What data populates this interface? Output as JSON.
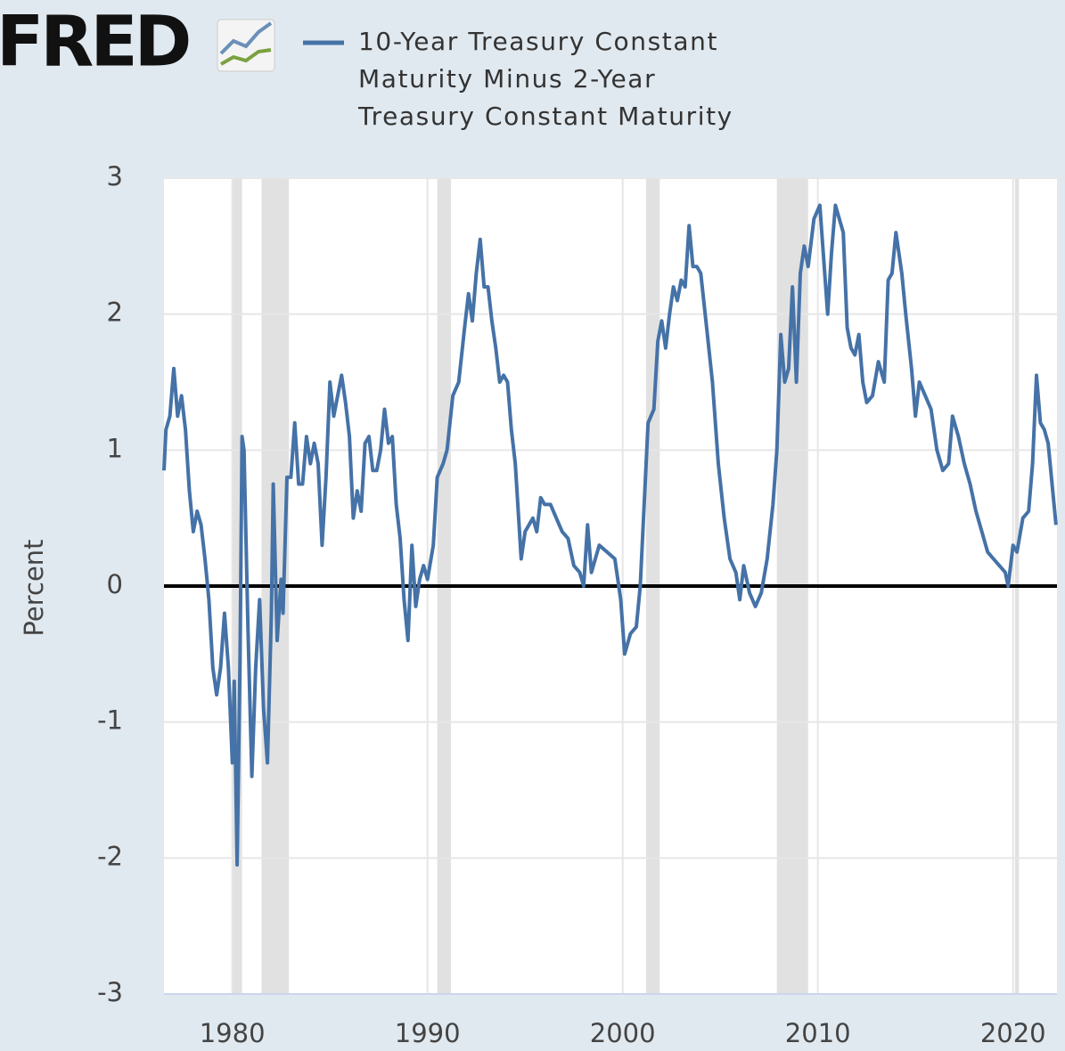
{
  "chart_data": {
    "type": "line",
    "logo": "FRED",
    "y_label": "Percent",
    "series": [
      {
        "name": "10-Year Treasury Constant Maturity Minus 2-Year Treasury Constant Maturity",
        "color": "#4572a7",
        "x": [
          1976.5,
          1976.6,
          1976.8,
          1977.0,
          1977.2,
          1977.4,
          1977.6,
          1977.8,
          1978.0,
          1978.2,
          1978.4,
          1978.6,
          1978.8,
          1979.0,
          1979.2,
          1979.4,
          1979.6,
          1979.8,
          1980.0,
          1980.1,
          1980.25,
          1980.4,
          1980.5,
          1980.6,
          1980.8,
          1981.0,
          1981.2,
          1981.4,
          1981.6,
          1981.8,
          1982.0,
          1982.1,
          1982.3,
          1982.5,
          1982.6,
          1982.8,
          1983.0,
          1983.2,
          1983.4,
          1983.6,
          1983.8,
          1984.0,
          1984.2,
          1984.4,
          1984.6,
          1984.8,
          1985.0,
          1985.2,
          1985.4,
          1985.6,
          1985.8,
          1986.0,
          1986.2,
          1986.4,
          1986.6,
          1986.8,
          1987.0,
          1987.2,
          1987.4,
          1987.6,
          1987.8,
          1988.0,
          1988.2,
          1988.4,
          1988.6,
          1988.8,
          1989.0,
          1989.2,
          1989.4,
          1989.6,
          1989.8,
          1990.0,
          1990.3,
          1990.5,
          1990.8,
          1991.0,
          1991.3,
          1991.6,
          1991.9,
          1992.1,
          1992.3,
          1992.5,
          1992.7,
          1992.9,
          1993.1,
          1993.3,
          1993.5,
          1993.7,
          1993.9,
          1994.1,
          1994.3,
          1994.5,
          1994.8,
          1995.0,
          1995.2,
          1995.4,
          1995.6,
          1995.8,
          1996.0,
          1996.3,
          1996.6,
          1996.9,
          1997.2,
          1997.5,
          1997.8,
          1998.0,
          1998.2,
          1998.4,
          1998.6,
          1998.8,
          1999.2,
          1999.6,
          1999.9,
          2000.1,
          2000.4,
          2000.7,
          2000.9,
          2001.1,
          2001.3,
          2001.6,
          2001.8,
          2002.0,
          2002.2,
          2002.4,
          2002.6,
          2002.8,
          2003.0,
          2003.2,
          2003.4,
          2003.6,
          2003.8,
          2004.0,
          2004.3,
          2004.6,
          2004.9,
          2005.2,
          2005.5,
          2005.8,
          2006.0,
          2006.2,
          2006.5,
          2006.8,
          2007.1,
          2007.4,
          2007.7,
          2007.9,
          2008.1,
          2008.3,
          2008.5,
          2008.7,
          2008.9,
          2009.1,
          2009.3,
          2009.5,
          2009.8,
          2010.1,
          2010.3,
          2010.5,
          2010.7,
          2010.9,
          2011.1,
          2011.3,
          2011.5,
          2011.7,
          2011.9,
          2012.1,
          2012.3,
          2012.5,
          2012.8,
          2013.1,
          2013.4,
          2013.6,
          2013.8,
          2014.0,
          2014.3,
          2014.5,
          2014.8,
          2015.0,
          2015.2,
          2015.5,
          2015.8,
          2016.1,
          2016.4,
          2016.7,
          2016.9,
          2017.2,
          2017.5,
          2017.8,
          2018.1,
          2018.4,
          2018.7,
          2019.0,
          2019.3,
          2019.6,
          2019.75,
          2020.0,
          2020.2,
          2020.5,
          2020.8,
          2021.0,
          2021.2,
          2021.4,
          2021.6,
          2021.8,
          2022.0,
          2022.2
        ],
        "values": [
          0.85,
          1.15,
          1.25,
          1.6,
          1.25,
          1.4,
          1.15,
          0.7,
          0.4,
          0.55,
          0.45,
          0.2,
          -0.1,
          -0.6,
          -0.8,
          -0.6,
          -0.2,
          -0.6,
          -1.3,
          -0.7,
          -2.05,
          -0.5,
          1.1,
          1.0,
          -0.3,
          -1.4,
          -0.6,
          -0.1,
          -0.9,
          -1.3,
          -0.2,
          0.75,
          -0.4,
          0.05,
          -0.2,
          0.8,
          0.8,
          1.2,
          0.75,
          0.75,
          1.1,
          0.9,
          1.05,
          0.9,
          0.3,
          0.8,
          1.5,
          1.25,
          1.4,
          1.55,
          1.35,
          1.1,
          0.5,
          0.7,
          0.55,
          1.05,
          1.1,
          0.85,
          0.85,
          1.0,
          1.3,
          1.05,
          1.1,
          0.6,
          0.35,
          -0.1,
          -0.4,
          0.3,
          -0.15,
          0.05,
          0.15,
          0.05,
          0.3,
          0.8,
          0.9,
          1.0,
          1.4,
          1.5,
          1.9,
          2.15,
          1.95,
          2.3,
          2.55,
          2.2,
          2.2,
          1.95,
          1.75,
          1.5,
          1.55,
          1.5,
          1.15,
          0.9,
          0.2,
          0.4,
          0.45,
          0.5,
          0.4,
          0.65,
          0.6,
          0.6,
          0.5,
          0.4,
          0.35,
          0.15,
          0.1,
          0.0,
          0.45,
          0.1,
          0.2,
          0.3,
          0.25,
          0.2,
          -0.1,
          -0.5,
          -0.35,
          -0.3,
          0.0,
          0.6,
          1.2,
          1.3,
          1.8,
          1.95,
          1.75,
          2.0,
          2.2,
          2.1,
          2.25,
          2.2,
          2.65,
          2.35,
          2.35,
          2.3,
          1.9,
          1.5,
          0.9,
          0.5,
          0.2,
          0.1,
          -0.1,
          0.15,
          -0.05,
          -0.15,
          -0.05,
          0.2,
          0.6,
          1.0,
          1.85,
          1.5,
          1.6,
          2.2,
          1.5,
          2.3,
          2.5,
          2.35,
          2.7,
          2.8,
          2.4,
          2.0,
          2.45,
          2.8,
          2.7,
          2.6,
          1.9,
          1.75,
          1.7,
          1.85,
          1.5,
          1.35,
          1.4,
          1.65,
          1.5,
          2.25,
          2.3,
          2.6,
          2.3,
          2.0,
          1.6,
          1.25,
          1.5,
          1.4,
          1.3,
          1.0,
          0.85,
          0.9,
          1.25,
          1.1,
          0.9,
          0.75,
          0.55,
          0.4,
          0.25,
          0.2,
          0.15,
          0.1,
          0.0,
          0.3,
          0.25,
          0.5,
          0.55,
          0.9,
          1.55,
          1.2,
          1.15,
          1.05,
          0.75,
          0.45
        ]
      }
    ],
    "recessions": [
      [
        1980.0,
        1980.5
      ],
      [
        1981.5,
        1982.9
      ],
      [
        1990.5,
        1991.2
      ],
      [
        2001.2,
        2001.9
      ],
      [
        2007.9,
        2009.5
      ],
      [
        2020.1,
        2020.3
      ]
    ],
    "recession_color": "#e1e1e1",
    "reference_line": 0,
    "xlim": [
      1976.5,
      2022.25
    ],
    "xticks": [
      1980,
      1990,
      2000,
      2010,
      2020
    ],
    "ylim": [
      -3,
      3
    ],
    "yticks": [
      -3,
      -2,
      -1,
      0,
      1,
      2,
      3
    ],
    "grid": true
  }
}
